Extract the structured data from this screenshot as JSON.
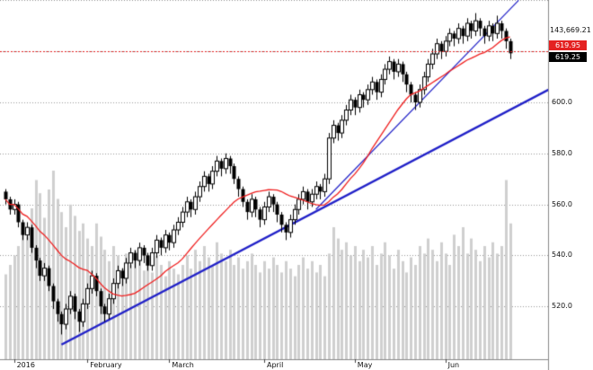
{
  "chart_data": {
    "type": "candlestick",
    "title": "",
    "top_right_label": "143,669.21",
    "reference_price": "619.95",
    "last_price": "619.25",
    "ylim": [
      501,
      640
    ],
    "grid": {
      "start": 520,
      "end": 640,
      "step": 20
    },
    "y_ticks": [
      {
        "price": 600,
        "label": "600.0"
      },
      {
        "price": 580,
        "label": "580.0"
      },
      {
        "price": 560,
        "label": "560.0"
      },
      {
        "price": 540,
        "label": "540.0"
      },
      {
        "price": 520,
        "label": "520.0"
      }
    ],
    "x_ticks": [
      {
        "index": 2,
        "label": "2016"
      },
      {
        "index": 19,
        "label": "February"
      },
      {
        "index": 38,
        "label": "March"
      },
      {
        "index": 60,
        "label": "April"
      },
      {
        "index": 81,
        "label": "May"
      },
      {
        "index": 102,
        "label": "Jun"
      }
    ],
    "overlays": {
      "sma": {
        "window": 20,
        "color": "#f02020"
      },
      "reference_line": {
        "price": 619.95,
        "color": "#e42222"
      },
      "trendlines": [
        {
          "from_index": 13,
          "from_price": 505,
          "to_index": 126,
          "to_price": 605,
          "width": 2.4,
          "color": "#2121c8"
        },
        {
          "from_index": 72,
          "from_price": 558,
          "to_index": 119,
          "to_price": 640,
          "width": 1.2,
          "color": "#2121c8"
        }
      ]
    },
    "colors": {
      "up_fill": "#ffffff",
      "down_fill": "#000000",
      "candle_border": "#000000",
      "volume": "#cfcfcf",
      "grid": "#999999",
      "axis": "#888888"
    },
    "candles": [
      [
        565,
        566,
        560,
        562,
        45
      ],
      [
        562,
        563,
        556,
        558,
        50
      ],
      [
        558,
        562,
        556,
        560,
        55
      ],
      [
        560,
        561,
        551,
        553,
        60
      ],
      [
        553,
        554,
        546,
        548,
        70
      ],
      [
        548,
        553,
        546,
        551,
        65
      ],
      [
        551,
        552,
        541,
        543,
        80
      ],
      [
        543,
        544,
        535,
        538,
        95
      ],
      [
        538,
        539,
        530,
        532,
        88
      ],
      [
        532,
        537,
        530,
        535,
        75
      ],
      [
        535,
        536,
        526,
        528,
        90
      ],
      [
        528,
        529,
        519,
        522,
        100
      ],
      [
        522,
        523,
        514,
        517,
        85
      ],
      [
        517,
        518,
        509,
        513,
        78
      ],
      [
        513,
        521,
        511,
        519,
        70
      ],
      [
        519,
        526,
        517,
        524,
        82
      ],
      [
        524,
        525,
        515,
        518,
        76
      ],
      [
        518,
        519,
        510,
        514,
        68
      ],
      [
        514,
        523,
        512,
        521,
        72
      ],
      [
        521,
        529,
        519,
        527,
        64
      ],
      [
        527,
        534,
        525,
        532,
        60
      ],
      [
        532,
        533,
        524,
        526,
        72
      ],
      [
        526,
        527,
        517,
        520,
        65
      ],
      [
        520,
        521,
        514,
        517,
        58
      ],
      [
        517,
        525,
        515,
        523,
        52
      ],
      [
        523,
        531,
        521,
        529,
        60
      ],
      [
        529,
        536,
        527,
        534,
        55
      ],
      [
        534,
        535,
        528,
        531,
        48
      ],
      [
        531,
        539,
        529,
        537,
        56
      ],
      [
        537,
        543,
        535,
        541,
        50
      ],
      [
        541,
        542,
        535,
        538,
        58
      ],
      [
        538,
        545,
        536,
        543,
        54
      ],
      [
        543,
        544,
        537,
        540,
        47
      ],
      [
        540,
        541,
        534,
        536,
        52
      ],
      [
        536,
        543,
        534,
        541,
        46
      ],
      [
        541,
        548,
        539,
        546,
        55
      ],
      [
        546,
        547,
        540,
        543,
        50
      ],
      [
        543,
        550,
        541,
        548,
        44
      ],
      [
        548,
        549,
        542,
        545,
        52
      ],
      [
        545,
        552,
        543,
        550,
        48
      ],
      [
        550,
        555,
        548,
        553,
        45
      ],
      [
        553,
        559,
        551,
        557,
        50
      ],
      [
        557,
        563,
        555,
        561,
        55
      ],
      [
        561,
        562,
        555,
        558,
        48
      ],
      [
        558,
        565,
        556,
        563,
        58
      ],
      [
        563,
        569,
        561,
        567,
        52
      ],
      [
        567,
        573,
        565,
        571,
        60
      ],
      [
        571,
        572,
        565,
        568,
        54
      ],
      [
        568,
        575,
        566,
        573,
        50
      ],
      [
        573,
        579,
        571,
        577,
        62
      ],
      [
        577,
        578,
        571,
        574,
        56
      ],
      [
        574,
        580,
        572,
        578,
        52
      ],
      [
        578,
        579,
        572,
        575,
        58
      ],
      [
        575,
        576,
        568,
        570,
        50
      ],
      [
        570,
        571,
        563,
        566,
        54
      ],
      [
        566,
        567,
        559,
        561,
        48
      ],
      [
        561,
        562,
        554,
        557,
        52
      ],
      [
        557,
        564,
        555,
        562,
        56
      ],
      [
        562,
        563,
        555,
        558,
        50
      ],
      [
        558,
        559,
        551,
        554,
        46
      ],
      [
        554,
        561,
        552,
        559,
        52
      ],
      [
        559,
        565,
        557,
        563,
        48
      ],
      [
        563,
        564,
        557,
        560,
        54
      ],
      [
        560,
        561,
        553,
        556,
        50
      ],
      [
        556,
        557,
        549,
        552,
        46
      ],
      [
        552,
        553,
        546,
        549,
        52
      ],
      [
        549,
        556,
        547,
        554,
        48
      ],
      [
        554,
        560,
        552,
        558,
        44
      ],
      [
        558,
        564,
        556,
        562,
        50
      ],
      [
        562,
        567,
        560,
        565,
        54
      ],
      [
        565,
        566,
        558,
        561,
        48
      ],
      [
        561,
        566,
        559,
        564,
        52
      ],
      [
        564,
        569,
        562,
        567,
        46
      ],
      [
        567,
        568,
        562,
        565,
        50
      ],
      [
        565,
        572,
        563,
        570,
        44
      ],
      [
        570,
        588,
        568,
        586,
        56
      ],
      [
        586,
        593,
        584,
        591,
        70
      ],
      [
        591,
        592,
        585,
        588,
        64
      ],
      [
        588,
        595,
        586,
        593,
        58
      ],
      [
        593,
        599,
        591,
        597,
        62
      ],
      [
        597,
        603,
        595,
        601,
        55
      ],
      [
        601,
        602,
        595,
        598,
        60
      ],
      [
        598,
        605,
        596,
        603,
        52
      ],
      [
        603,
        604,
        598,
        601,
        58
      ],
      [
        601,
        607,
        599,
        605,
        54
      ],
      [
        605,
        610,
        603,
        608,
        60
      ],
      [
        608,
        609,
        601,
        604,
        50
      ],
      [
        604,
        611,
        602,
        609,
        56
      ],
      [
        609,
        615,
        607,
        613,
        62
      ],
      [
        613,
        618,
        611,
        616,
        55
      ],
      [
        616,
        617,
        609,
        612,
        48
      ],
      [
        612,
        617,
        610,
        615,
        58
      ],
      [
        615,
        616,
        608,
        611,
        52
      ],
      [
        611,
        612,
        604,
        607,
        46
      ],
      [
        607,
        608,
        600,
        603,
        54
      ],
      [
        603,
        604,
        597,
        600,
        50
      ],
      [
        600,
        607,
        598,
        605,
        60
      ],
      [
        605,
        612,
        603,
        610,
        56
      ],
      [
        610,
        617,
        608,
        615,
        64
      ],
      [
        615,
        621,
        613,
        619,
        58
      ],
      [
        619,
        625,
        617,
        623,
        52
      ],
      [
        623,
        624,
        617,
        620,
        62
      ],
      [
        620,
        626,
        618,
        624,
        56
      ],
      [
        624,
        629,
        622,
        627,
        50
      ],
      [
        627,
        628,
        622,
        625,
        66
      ],
      [
        625,
        631,
        623,
        629,
        60
      ],
      [
        629,
        630,
        623,
        626,
        70
      ],
      [
        626,
        633,
        624,
        631,
        56
      ],
      [
        631,
        632,
        625,
        628,
        64
      ],
      [
        628,
        635,
        626,
        632,
        58
      ],
      [
        632,
        633,
        626,
        629,
        52
      ],
      [
        629,
        630,
        623,
        626,
        60
      ],
      [
        626,
        632,
        624,
        630,
        54
      ],
      [
        630,
        631,
        624,
        627,
        62
      ],
      [
        627,
        634,
        625,
        631,
        56
      ],
      [
        631,
        632,
        625,
        628,
        60
      ],
      [
        628,
        629,
        621,
        624,
        95
      ],
      [
        624,
        625,
        617,
        619.25,
        72
      ]
    ]
  }
}
